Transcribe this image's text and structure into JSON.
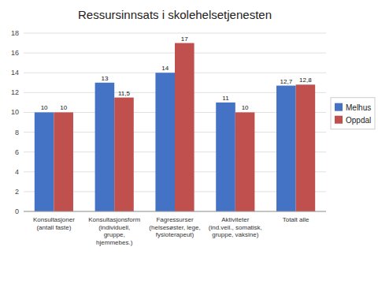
{
  "chart_data": {
    "type": "bar",
    "title": "Ressursinnsats i skolehelsetjenesten",
    "categories": [
      "Konsultasjoner\n(antall faste)",
      "Konsultasjonsform\n(individuell,\ngruppe,\nhjemmebes.)",
      "Fagressurser\n(helsesøster, lege,\nfysioterapeut)",
      "Aktiviteter\n(ind.veil., somatisk,\ngruppe, vaksine)",
      "Totalt alle"
    ],
    "series": [
      {
        "name": "Melhus",
        "color": "#4472C4",
        "values": [
          10,
          13,
          14,
          11,
          12.7
        ],
        "value_labels": [
          "10",
          "13",
          "14",
          "11",
          "12,7"
        ]
      },
      {
        "name": "Oppdal",
        "color": "#C0504D",
        "values": [
          10,
          11.5,
          17,
          10,
          12.8
        ],
        "value_labels": [
          "10",
          "11,5",
          "17",
          "10",
          "12,8"
        ]
      }
    ],
    "ylim": [
      0,
      18
    ],
    "yticks": [
      0,
      2,
      4,
      6,
      8,
      10,
      12,
      14,
      16,
      18
    ],
    "grid": true,
    "legend": "right",
    "data_labels": true
  }
}
